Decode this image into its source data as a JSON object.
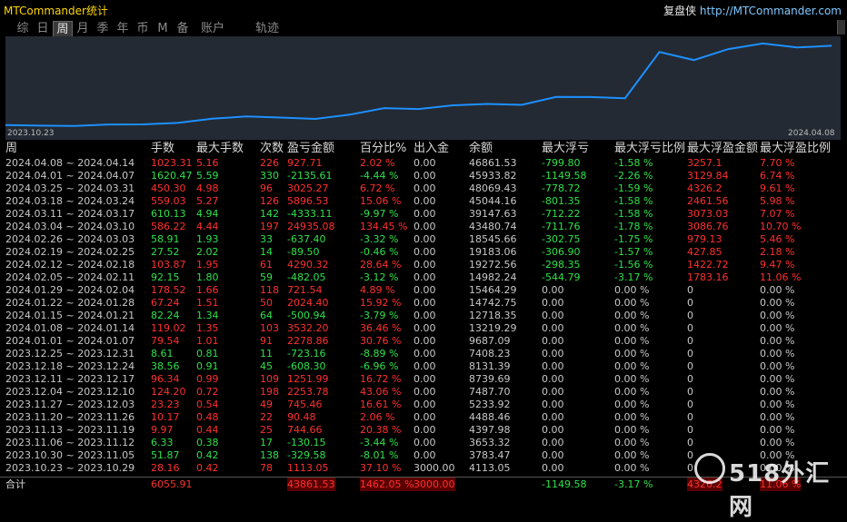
{
  "app_title": "MTCommander统计",
  "brand": {
    "name": "复盘侠",
    "site": "http://MTCommander.com"
  },
  "tabs": [
    {
      "label": "综",
      "active": false
    },
    {
      "label": "日",
      "active": false
    },
    {
      "label": "周",
      "active": true
    },
    {
      "label": "月",
      "active": false
    },
    {
      "label": "季",
      "active": false
    },
    {
      "label": "年",
      "active": false
    },
    {
      "label": "币",
      "active": false
    },
    {
      "label": "M",
      "active": false
    },
    {
      "label": "备",
      "active": false
    },
    {
      "label": "账户",
      "active": false
    },
    {
      "label": "轨迹",
      "active": false
    }
  ],
  "chart_data": {
    "type": "line",
    "x_start_label": "2023.10.23",
    "x_end_label": "2024.04.08",
    "line_color": "#1e90ff",
    "values": [
      4113.05,
      3783.47,
      3653.32,
      4397.98,
      4488.46,
      5233.92,
      7487.7,
      8739.69,
      8131.39,
      7408.23,
      9687.09,
      13219.29,
      12718.35,
      14742.75,
      15464.29,
      14982.24,
      19272.56,
      19183.06,
      18545.66,
      43480.74,
      39147.63,
      45044.16,
      48069.43,
      45933.82,
      46861.53
    ],
    "ylim": [
      3000,
      50000
    ]
  },
  "table": {
    "headers": [
      "周",
      "手数",
      "最大手数",
      "次数",
      "盈亏金额",
      "百分比%",
      "出入金",
      "余额",
      "最大浮亏",
      "最大浮亏比例",
      "最大浮盈金额",
      "最大浮盈比例"
    ],
    "rows": [
      {
        "c": [
          "2024.04.08 ~ 2024.04.14",
          "1023.31",
          "5.16",
          "226",
          "927.71",
          "2.02 %",
          "0.00",
          "46861.53",
          "-799.80",
          "-1.58 %",
          "3257.1",
          "7.70 %"
        ],
        "t": "red"
      },
      {
        "c": [
          "2024.04.01 ~ 2024.04.07",
          "1620.47",
          "5.59",
          "330",
          "-2135.61",
          "-4.44 %",
          "0.00",
          "45933.82",
          "-1149.58",
          "-2.26 %",
          "3129.84",
          "6.74 %"
        ],
        "t": "green"
      },
      {
        "c": [
          "2024.03.25 ~ 2024.03.31",
          "450.30",
          "4.98",
          "96",
          "3025.27",
          "6.72 %",
          "0.00",
          "48069.43",
          "-778.72",
          "-1.59 %",
          "4326.2",
          "9.61 %"
        ],
        "t": "red"
      },
      {
        "c": [
          "2024.03.18 ~ 2024.03.24",
          "559.03",
          "5.27",
          "126",
          "5896.53",
          "15.06 %",
          "0.00",
          "45044.16",
          "-801.35",
          "-1.58 %",
          "2461.56",
          "5.98 %"
        ],
        "t": "red"
      },
      {
        "c": [
          "2024.03.11 ~ 2024.03.17",
          "610.13",
          "4.94",
          "142",
          "-4333.11",
          "-9.97 %",
          "0.00",
          "39147.63",
          "-712.22",
          "-1.58 %",
          "3073.03",
          "7.07 %"
        ],
        "t": "green"
      },
      {
        "c": [
          "2024.03.04 ~ 2024.03.10",
          "586.22",
          "4.44",
          "197",
          "24935.08",
          "134.45 %",
          "0.00",
          "43480.74",
          "-711.76",
          "-1.78 %",
          "3086.76",
          "10.70 %"
        ],
        "t": "red"
      },
      {
        "c": [
          "2024.02.26 ~ 2024.03.03",
          "58.91",
          "1.93",
          "33",
          "-637.40",
          "-3.32 %",
          "0.00",
          "18545.66",
          "-302.75",
          "-1.75 %",
          "979.13",
          "5.46 %"
        ],
        "t": "green"
      },
      {
        "c": [
          "2024.02.19 ~ 2024.02.25",
          "27.52",
          "2.02",
          "14",
          "-89.50",
          "-0.46 %",
          "0.00",
          "19183.06",
          "-306.90",
          "-1.57 %",
          "427.85",
          "2.18 %"
        ],
        "t": "green"
      },
      {
        "c": [
          "2024.02.12 ~ 2024.02.18",
          "103.87",
          "1.95",
          "61",
          "4290.32",
          "28.64 %",
          "0.00",
          "19272.56",
          "-298.35",
          "-1.56 %",
          "1422.72",
          "9.47 %"
        ],
        "t": "red"
      },
      {
        "c": [
          "2024.02.05 ~ 2024.02.11",
          "92.15",
          "1.80",
          "59",
          "-482.05",
          "-3.12 %",
          "0.00",
          "14982.24",
          "-544.79",
          "-3.17 %",
          "1783.16",
          "11.06 %"
        ],
        "t": "green"
      },
      {
        "c": [
          "2024.01.29 ~ 2024.02.04",
          "178.52",
          "1.66",
          "118",
          "721.54",
          "4.89 %",
          "0.00",
          "15464.29",
          "0.00",
          "0.00 %",
          "0",
          "0.00 %"
        ],
        "t": "red"
      },
      {
        "c": [
          "2024.01.22 ~ 2024.01.28",
          "67.24",
          "1.51",
          "50",
          "2024.40",
          "15.92 %",
          "0.00",
          "14742.75",
          "0.00",
          "0.00 %",
          "0",
          "0.00 %"
        ],
        "t": "red"
      },
      {
        "c": [
          "2024.01.15 ~ 2024.01.21",
          "82.24",
          "1.34",
          "64",
          "-500.94",
          "-3.79 %",
          "0.00",
          "12718.35",
          "0.00",
          "0.00 %",
          "0",
          "0.00 %"
        ],
        "t": "green"
      },
      {
        "c": [
          "2024.01.08 ~ 2024.01.14",
          "119.02",
          "1.35",
          "103",
          "3532.20",
          "36.46 %",
          "0.00",
          "13219.29",
          "0.00",
          "0.00 %",
          "0",
          "0.00 %"
        ],
        "t": "red"
      },
      {
        "c": [
          "2024.01.01 ~ 2024.01.07",
          "79.54",
          "1.01",
          "91",
          "2278.86",
          "30.76 %",
          "0.00",
          "9687.09",
          "0.00",
          "0.00 %",
          "0",
          "0.00 %"
        ],
        "t": "red"
      },
      {
        "c": [
          "2023.12.25 ~ 2023.12.31",
          "8.61",
          "0.81",
          "11",
          "-723.16",
          "-8.89 %",
          "0.00",
          "7408.23",
          "0.00",
          "0.00 %",
          "0",
          "0.00 %"
        ],
        "t": "green"
      },
      {
        "c": [
          "2023.12.18 ~ 2023.12.24",
          "38.56",
          "0.91",
          "45",
          "-608.30",
          "-6.96 %",
          "0.00",
          "8131.39",
          "0.00",
          "0.00 %",
          "0",
          "0.00 %"
        ],
        "t": "green"
      },
      {
        "c": [
          "2023.12.11 ~ 2023.12.17",
          "96.34",
          "0.99",
          "109",
          "1251.99",
          "16.72 %",
          "0.00",
          "8739.69",
          "0.00",
          "0.00 %",
          "0",
          "0.00 %"
        ],
        "t": "red"
      },
      {
        "c": [
          "2023.12.04 ~ 2023.12.10",
          "124.20",
          "0.72",
          "198",
          "2253.78",
          "43.06 %",
          "0.00",
          "7487.70",
          "0.00",
          "0.00 %",
          "0",
          "0.00 %"
        ],
        "t": "red"
      },
      {
        "c": [
          "2023.11.27 ~ 2023.12.03",
          "23.23",
          "0.54",
          "49",
          "745.46",
          "16.61 %",
          "0.00",
          "5233.92",
          "0.00",
          "0.00 %",
          "0",
          "0.00 %"
        ],
        "t": "red"
      },
      {
        "c": [
          "2023.11.20 ~ 2023.11.26",
          "10.17",
          "0.48",
          "22",
          "90.48",
          "2.06 %",
          "0.00",
          "4488.46",
          "0.00",
          "0.00 %",
          "0",
          "0.00 %"
        ],
        "t": "red"
      },
      {
        "c": [
          "2023.11.13 ~ 2023.11.19",
          "9.97",
          "0.44",
          "25",
          "744.66",
          "20.38 %",
          "0.00",
          "4397.98",
          "0.00",
          "0.00 %",
          "0",
          "0.00 %"
        ],
        "t": "red"
      },
      {
        "c": [
          "2023.11.06 ~ 2023.11.12",
          "6.33",
          "0.38",
          "17",
          "-130.15",
          "-3.44 %",
          "0.00",
          "3653.32",
          "0.00",
          "0.00 %",
          "0",
          "0.00 %"
        ],
        "t": "green"
      },
      {
        "c": [
          "2023.10.30 ~ 2023.11.05",
          "51.87",
          "0.42",
          "138",
          "-329.58",
          "-8.01 %",
          "0.00",
          "3783.47",
          "0.00",
          "0.00 %",
          "0",
          "0.00 %"
        ],
        "t": "green"
      },
      {
        "c": [
          "2023.10.23 ~ 2023.10.29",
          "28.16",
          "0.42",
          "78",
          "1113.05",
          "37.10 %",
          "3000.00",
          "4113.05",
          "0.00",
          "0.00 %",
          "0",
          "0.00 %"
        ],
        "t": "red"
      }
    ],
    "total": {
      "label": "合计",
      "lots": "6055.91",
      "pnl": "43861.53",
      "pct": "1462.05 %",
      "deposit": "3000.00",
      "max_float_loss": "-1149.58",
      "max_float_loss_pct": "-3.17 %",
      "max_float_profit": "4326.2",
      "max_float_profit_pct": "11.06 %"
    }
  },
  "watermark": "518外汇网"
}
